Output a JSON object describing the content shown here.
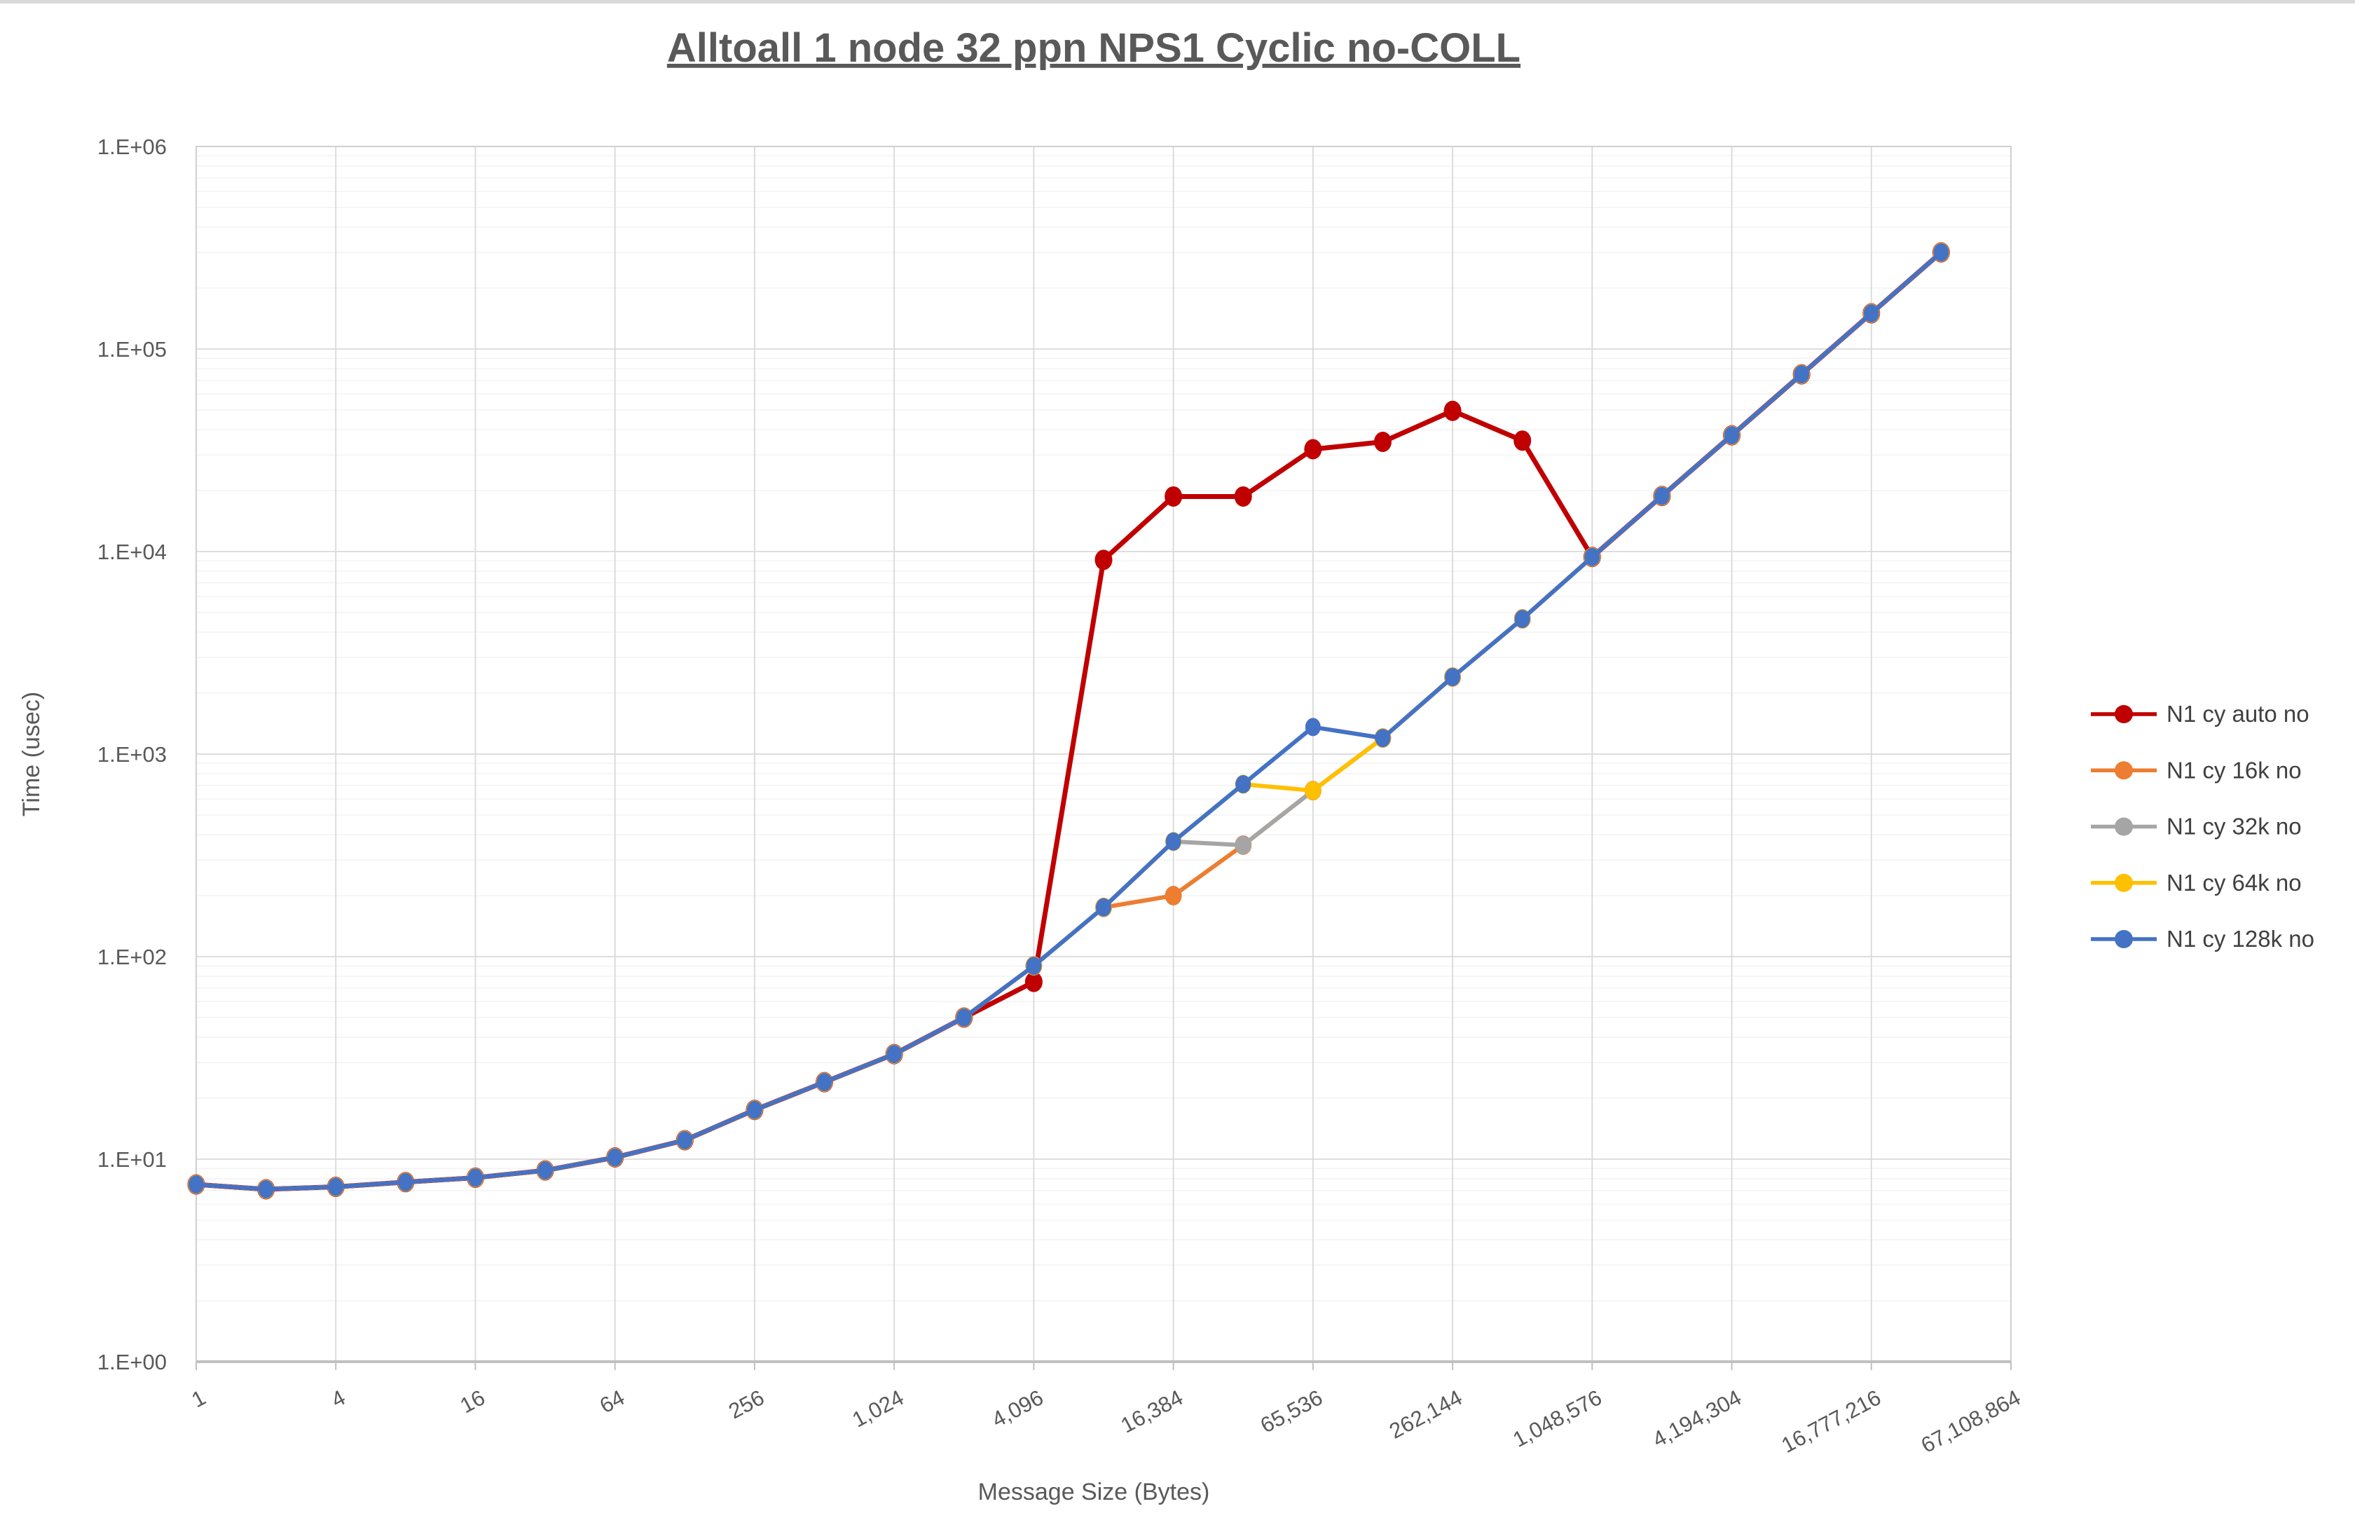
{
  "title": "Alltoall 1 node 32 ppn NPS1 Cyclic no-COLL",
  "axes": {
    "x": {
      "title": "Message Size (Bytes)",
      "scale": "log",
      "tick_values": [
        1,
        4,
        16,
        64,
        256,
        1024,
        4096,
        16384,
        65536,
        262144,
        1048576,
        4194304,
        16777216,
        67108864
      ],
      "tick_labels": [
        "1",
        "4",
        "16",
        "64",
        "256",
        "1,024",
        "4,096",
        "16,384",
        "65,536",
        "262,144",
        "1,048,576",
        "4,194,304",
        "16,777,216",
        "67,108,864"
      ]
    },
    "y": {
      "title": "Time (usec)",
      "scale": "log",
      "min": 1,
      "max": 1000000,
      "tick_labels": [
        "1.E+00",
        "1.E+01",
        "1.E+02",
        "1.E+03",
        "1.E+04",
        "1.E+05",
        "1.E+06"
      ]
    }
  },
  "legend": {
    "position": "right"
  },
  "chart_data": {
    "type": "line",
    "title": "Alltoall 1 node 32 ppn NPS1 Cyclic no-COLL",
    "xlabel": "Message Size (Bytes)",
    "ylabel": "Time (usec)",
    "xlim": [
      1,
      67108864
    ],
    "ylim": [
      1,
      1000000
    ],
    "grid": true,
    "legend_position": "right",
    "x": [
      1,
      2,
      4,
      8,
      16,
      32,
      64,
      128,
      256,
      512,
      1024,
      2048,
      4096,
      8192,
      16384,
      32768,
      65536,
      131072,
      262144,
      524288,
      1048576,
      2097152,
      4194304,
      8388608,
      16777216,
      33554432
    ],
    "series": [
      {
        "name": "N1 cy auto no",
        "color": "#C00000",
        "values": [
          7.5,
          7.1,
          7.3,
          7.7,
          8.1,
          8.8,
          10.2,
          12.4,
          17.5,
          24,
          33,
          50,
          75,
          9100,
          18700,
          18700,
          32000,
          34800,
          49500,
          35300,
          9400,
          18800,
          37500,
          75000,
          150000,
          300000
        ]
      },
      {
        "name": "N1 cy 16k no",
        "color": "#ED7D31",
        "values": [
          7.5,
          7.1,
          7.3,
          7.7,
          8.1,
          8.8,
          10.2,
          12.4,
          17.5,
          24,
          33,
          50,
          90,
          175,
          200,
          355,
          660,
          1200,
          2400,
          4650,
          9400,
          18800,
          37500,
          75000,
          150000,
          300000
        ]
      },
      {
        "name": "N1 cy 32k no",
        "color": "#A5A5A5",
        "values": [
          7.5,
          7.1,
          7.3,
          7.7,
          8.1,
          8.8,
          10.2,
          12.4,
          17.5,
          24,
          33,
          50,
          90,
          175,
          370,
          355,
          660,
          1200,
          2400,
          4650,
          9400,
          18800,
          37500,
          75000,
          150000,
          300000
        ]
      },
      {
        "name": "N1 cy 64k no",
        "color": "#FFC000",
        "values": [
          7.5,
          7.1,
          7.3,
          7.7,
          8.1,
          8.8,
          10.2,
          12.4,
          17.5,
          24,
          33,
          50,
          90,
          175,
          370,
          710,
          660,
          1200,
          2400,
          4650,
          9400,
          18800,
          37500,
          75000,
          150000,
          300000
        ]
      },
      {
        "name": "N1 cy 128k no",
        "color": "#4472C4",
        "values": [
          7.5,
          7.1,
          7.3,
          7.7,
          8.1,
          8.8,
          10.2,
          12.4,
          17.5,
          24,
          33,
          50,
          90,
          175,
          370,
          710,
          1360,
          1200,
          2400,
          4650,
          9400,
          18800,
          37500,
          75000,
          150000,
          300000
        ]
      }
    ]
  }
}
